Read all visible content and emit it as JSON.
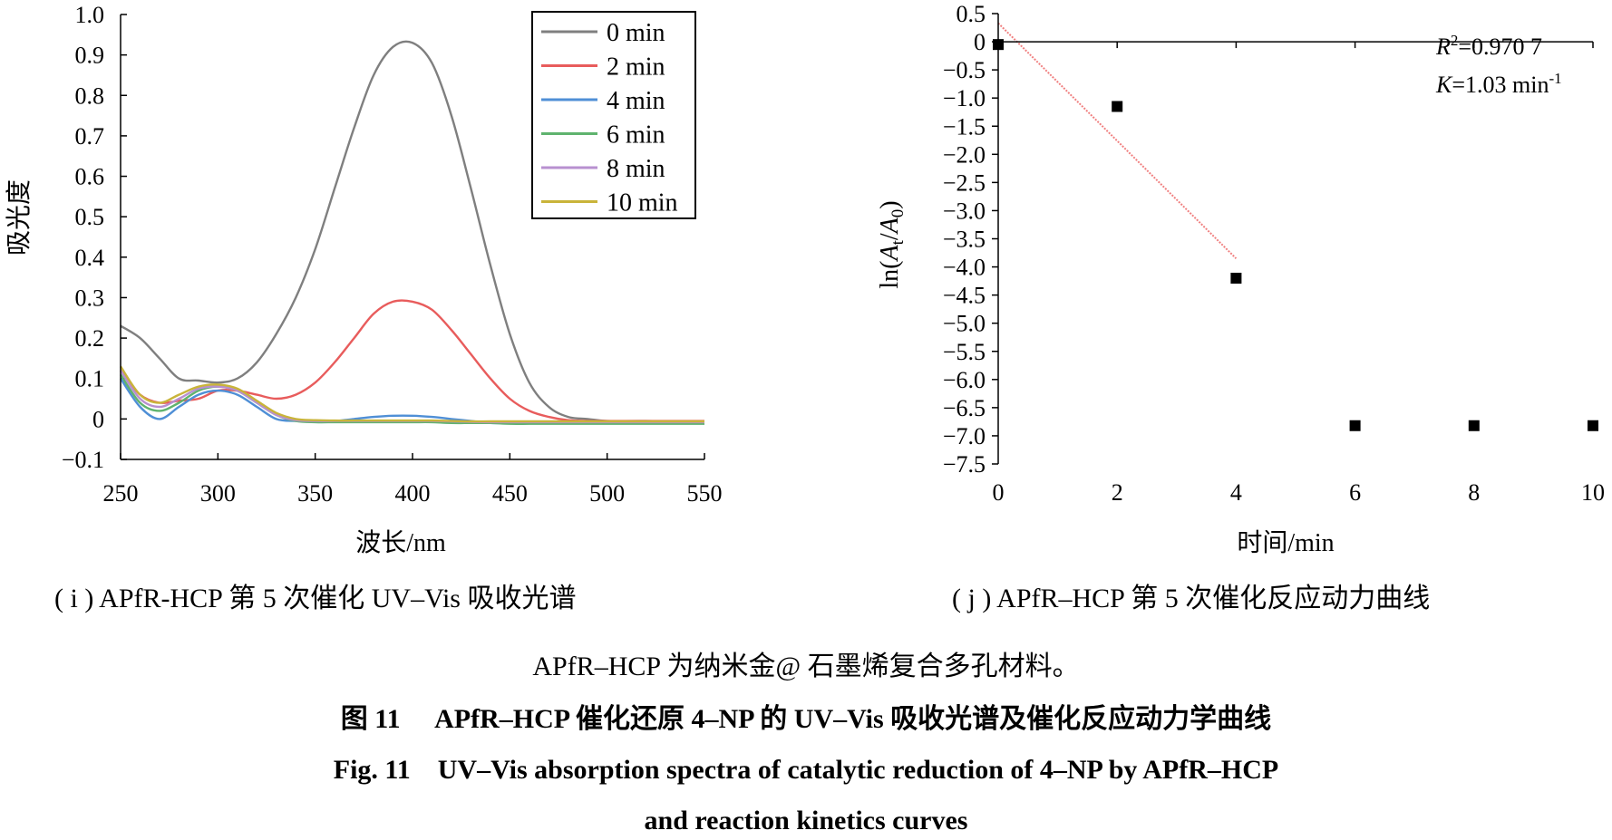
{
  "chart_data": [
    {
      "type": "line",
      "ylabel": "吸光度",
      "xlabel": "波长/nm",
      "xlim": [
        250,
        550
      ],
      "ylim": [
        -0.1,
        1.0
      ],
      "x_ticks": [
        "250",
        "300",
        "350",
        "400",
        "450",
        "500",
        "550"
      ],
      "y_ticks": [
        "1.0",
        "0.9",
        "0.8",
        "0.7",
        "0.6",
        "0.5",
        "0.4",
        "0.3",
        "0.2",
        "0.1",
        "0",
        "−0.1"
      ],
      "legend_position": "top-right",
      "grid": false,
      "x": [
        250,
        260,
        270,
        280,
        290,
        300,
        310,
        320,
        330,
        340,
        350,
        360,
        370,
        380,
        390,
        400,
        410,
        420,
        430,
        440,
        450,
        460,
        470,
        480,
        490,
        500,
        520,
        550
      ],
      "series": [
        {
          "name": "0 min",
          "color": "#7f7f7f",
          "values": [
            0.23,
            0.2,
            0.15,
            0.1,
            0.095,
            0.09,
            0.1,
            0.14,
            0.21,
            0.3,
            0.42,
            0.57,
            0.72,
            0.85,
            0.92,
            0.93,
            0.88,
            0.75,
            0.57,
            0.38,
            0.21,
            0.09,
            0.03,
            0.005,
            0.0,
            -0.005,
            -0.005,
            -0.008
          ]
        },
        {
          "name": "2 min",
          "color": "#e85c5c",
          "values": [
            0.12,
            0.06,
            0.04,
            0.045,
            0.05,
            0.07,
            0.07,
            0.06,
            0.05,
            0.06,
            0.09,
            0.14,
            0.2,
            0.26,
            0.29,
            0.29,
            0.27,
            0.22,
            0.16,
            0.1,
            0.05,
            0.02,
            0.005,
            -0.003,
            -0.005,
            -0.005,
            -0.005,
            -0.005
          ]
        },
        {
          "name": "4 min",
          "color": "#4f8fd6",
          "values": [
            0.1,
            0.03,
            0.0,
            0.03,
            0.06,
            0.07,
            0.06,
            0.03,
            0.0,
            -0.005,
            -0.005,
            -0.005,
            0.0,
            0.005,
            0.008,
            0.008,
            0.005,
            0.0,
            -0.005,
            -0.01,
            -0.01,
            -0.01,
            -0.01,
            -0.01,
            -0.01,
            -0.01,
            -0.01,
            -0.01
          ]
        },
        {
          "name": "6 min",
          "color": "#5fb36e",
          "values": [
            0.11,
            0.04,
            0.02,
            0.04,
            0.07,
            0.08,
            0.07,
            0.04,
            0.01,
            -0.005,
            -0.008,
            -0.008,
            -0.008,
            -0.008,
            -0.008,
            -0.008,
            -0.008,
            -0.01,
            -0.01,
            -0.01,
            -0.012,
            -0.012,
            -0.012,
            -0.012,
            -0.012,
            -0.012,
            -0.012,
            -0.012
          ]
        },
        {
          "name": "8 min",
          "color": "#b890d0",
          "values": [
            0.12,
            0.05,
            0.03,
            0.05,
            0.075,
            0.08,
            0.07,
            0.04,
            0.01,
            -0.003,
            -0.005,
            -0.005,
            -0.005,
            -0.005,
            -0.005,
            -0.005,
            -0.005,
            -0.006,
            -0.007,
            -0.008,
            -0.008,
            -0.008,
            -0.008,
            -0.008,
            -0.008,
            -0.008,
            -0.008,
            -0.008
          ]
        },
        {
          "name": "10 min",
          "color": "#c9b43a",
          "values": [
            0.13,
            0.06,
            0.04,
            0.06,
            0.08,
            0.085,
            0.075,
            0.045,
            0.015,
            0.0,
            -0.003,
            -0.004,
            -0.004,
            -0.004,
            -0.004,
            -0.004,
            -0.004,
            -0.005,
            -0.006,
            -0.006,
            -0.006,
            -0.006,
            -0.006,
            -0.006,
            -0.006,
            -0.006,
            -0.006,
            -0.006
          ]
        }
      ]
    },
    {
      "type": "scatter",
      "ylabel_parts": [
        "ln(",
        "A",
        "t",
        "/",
        "A",
        "0",
        ")"
      ],
      "xlabel": "时间/min",
      "xlim": [
        0,
        10
      ],
      "ylim": [
        -7.5,
        0.5
      ],
      "x_ticks": [
        "0",
        "2",
        "4",
        "6",
        "8",
        "10"
      ],
      "y_ticks": [
        "0.5",
        "0",
        "−0.5",
        "−1.0",
        "−1.5",
        "−2.0",
        "−2.5",
        "−3.0",
        "−3.5",
        "−4.0",
        "−4.5",
        "−5.0",
        "−5.5",
        "−6.0",
        "−6.5",
        "−7.0",
        "−7.5"
      ],
      "grid": false,
      "points": [
        {
          "x": 0,
          "y": -0.05
        },
        {
          "x": 2,
          "y": -1.15
        },
        {
          "x": 4,
          "y": -4.2
        },
        {
          "x": 6,
          "y": -6.82
        },
        {
          "x": 8,
          "y": -6.82
        },
        {
          "x": 10,
          "y": -6.82
        }
      ],
      "fit_line": {
        "x": [
          0,
          4
        ],
        "y": [
          0.33,
          -3.85
        ],
        "color": "#f08080"
      },
      "r2_parts": [
        "R",
        "2",
        "=0.970 7"
      ],
      "k_parts": [
        "K",
        "=1.03 min",
        "-1"
      ]
    }
  ],
  "captions": {
    "sub_i": "( i ) APfR-HCP 第 5 次催化 UV–Vis 吸收光谱",
    "sub_j": "( j ) APfR–HCP 第 5 次催化反应动力曲线",
    "note": "APfR–HCP 为纳米金@ 石墨烯复合多孔材料。",
    "figure_cn": "图 11　 APfR–HCP 催化还原 4–NP 的 UV–Vis 吸收光谱及催化反应动力学曲线",
    "figure_en_line1": "Fig. 11　UV–Vis absorption spectra of catalytic reduction of 4–NP by APfR–HCP",
    "figure_en_line2": "and reaction kinetics curves"
  }
}
